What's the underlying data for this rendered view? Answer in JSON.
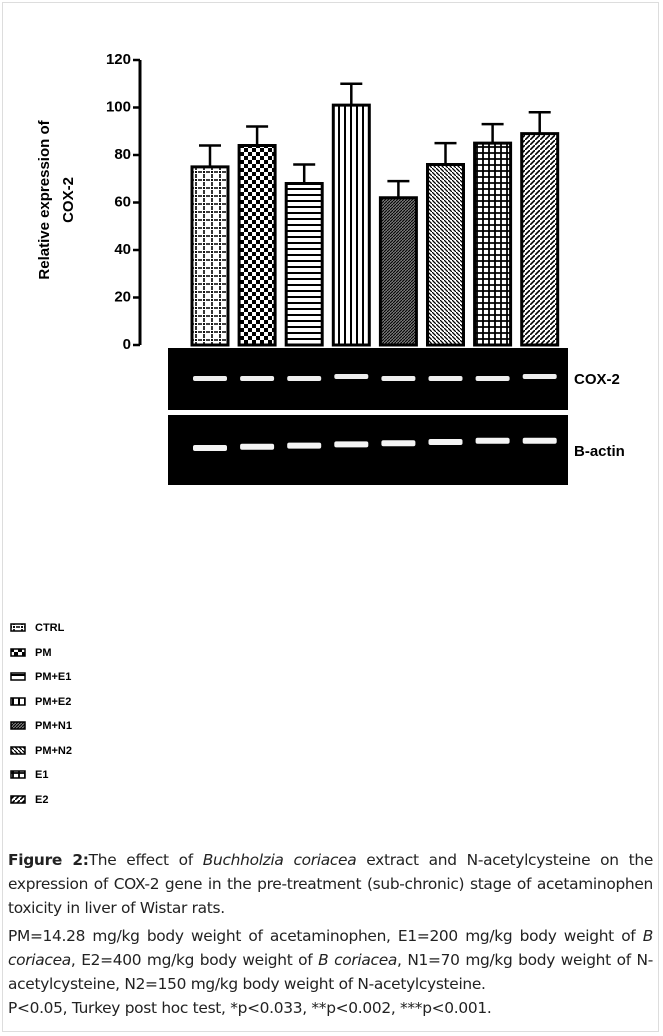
{
  "chart_data": {
    "type": "bar",
    "y_label": [
      "Relative expression of",
      "COX-2"
    ],
    "categories": [
      "CTRL",
      "PM",
      "PM+E1",
      "PM+E2",
      "PM+N1",
      "PM+N2",
      "E1",
      "E2"
    ],
    "values": [
      75,
      84,
      68,
      101,
      62,
      76,
      85,
      89
    ],
    "errors": [
      9,
      8,
      8,
      9,
      7,
      9,
      8,
      9
    ],
    "ylim": [
      0,
      120
    ],
    "yticks": [
      0,
      20,
      40,
      60,
      80,
      100,
      120
    ],
    "gel_labels": [
      "COX-2",
      "B-actin"
    ]
  },
  "caption": {
    "label": "Figure 2:",
    "segments": [
      {
        "text": "The effect of "
      },
      {
        "text": "Buchholzia coriacea",
        "italic": true
      },
      {
        "text": " extract and N-acetylcysteine on the expression of COX-2 gene in the pre-treatment (sub-chronic) stage of acetaminophen toxicity in liver of Wistar rats."
      }
    ],
    "notes": [
      {
        "text": "PM=14.28 mg/kg body weight of acetaminophen, E1=200 mg/kg body weight of "
      },
      {
        "text": "B coriacea",
        "italic": true
      },
      {
        "text": ", E2=400 mg/kg body weight of "
      },
      {
        "text": "B coriacea",
        "italic": true
      },
      {
        "text": ", N1=70 mg/kg body weight of N-acetylcysteine, N2=150 mg/kg body weight of N-acetylcysteine."
      }
    ],
    "stats": "P<0.05, Turkey post hoc test, *p<0.033, **p<0.002, ***p<0.001."
  }
}
